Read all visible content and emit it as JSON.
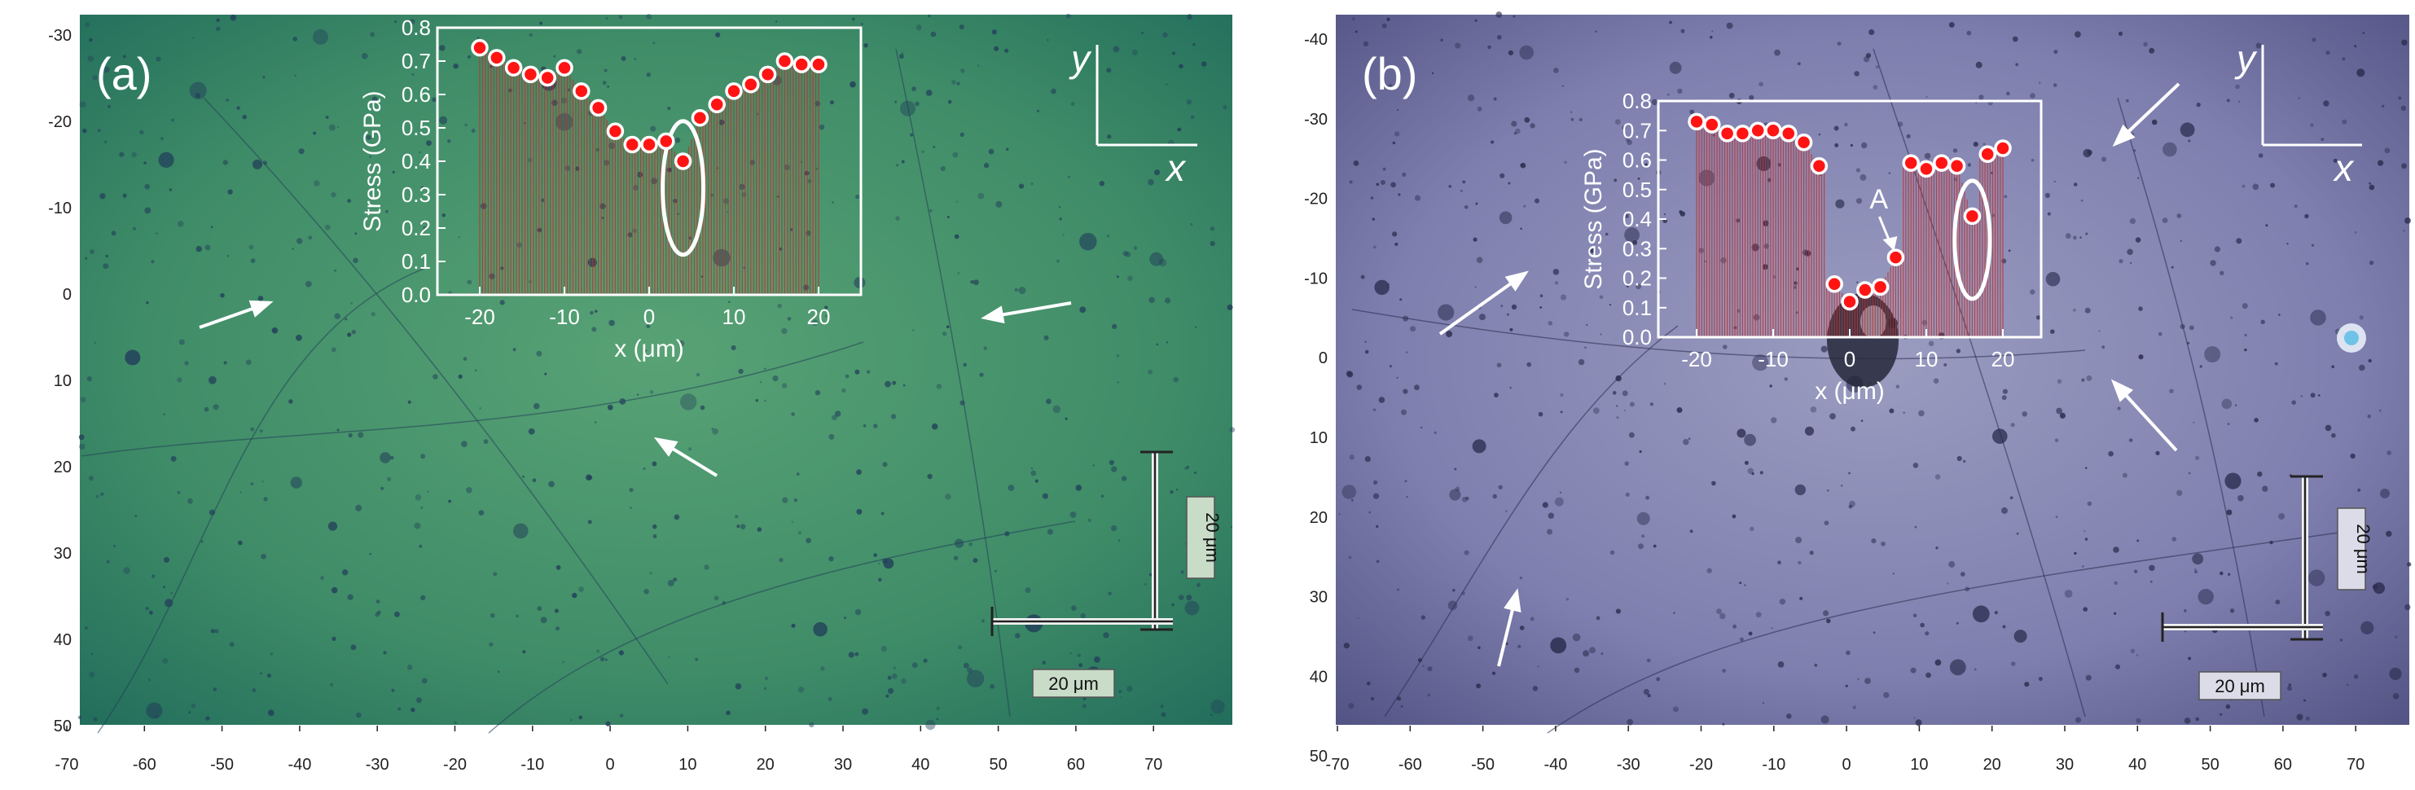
{
  "panels": [
    {
      "label": "(a)",
      "theme": {
        "bg_center": "#58a275",
        "bg_mid": "#3f8c68",
        "bg_edge": "#1f6a5a",
        "speck": "#22405a"
      },
      "x_axis_ticks": [
        "-70",
        "-60",
        "-50",
        "-40",
        "-30",
        "-20",
        "-10",
        "0",
        "10",
        "20",
        "30",
        "40",
        "50",
        "60",
        "70"
      ],
      "y_axis_ticks": [
        "-30",
        "-20",
        "-10",
        "0",
        "10",
        "20",
        "30",
        "40",
        "50"
      ],
      "axis_arrows": {
        "y": "y",
        "x": "x"
      },
      "scalebar_vertical": "20 μm",
      "scalebar_horizontal": "20 μm",
      "inset": {
        "chart_data": {
          "type": "scatter",
          "ylabel": "Stress (GPa)",
          "xlabel": "x (μm)",
          "x_ticks": [
            "-20",
            "-10",
            "0",
            "10",
            "20"
          ],
          "y_ticks": [
            "0.0",
            "0.1",
            "0.2",
            "0.3",
            "0.4",
            "0.5",
            "0.6",
            "0.7",
            "0.8"
          ],
          "xlim": [
            -25,
            25
          ],
          "ylim": [
            0,
            0.8
          ],
          "points": [
            {
              "x": -20,
              "y": 0.74
            },
            {
              "x": -18,
              "y": 0.71
            },
            {
              "x": -16,
              "y": 0.68
            },
            {
              "x": -14,
              "y": 0.66
            },
            {
              "x": -12,
              "y": 0.65
            },
            {
              "x": -10,
              "y": 0.68
            },
            {
              "x": -8,
              "y": 0.61
            },
            {
              "x": -6,
              "y": 0.56
            },
            {
              "x": -4,
              "y": 0.49
            },
            {
              "x": -2,
              "y": 0.45
            },
            {
              "x": 0,
              "y": 0.45
            },
            {
              "x": 2,
              "y": 0.46
            },
            {
              "x": 4,
              "y": 0.4
            },
            {
              "x": 6,
              "y": 0.53
            },
            {
              "x": 8,
              "y": 0.57
            },
            {
              "x": 10,
              "y": 0.61
            },
            {
              "x": 12,
              "y": 0.63
            },
            {
              "x": 14,
              "y": 0.66
            },
            {
              "x": 16,
              "y": 0.7
            },
            {
              "x": 18,
              "y": 0.69
            },
            {
              "x": 20,
              "y": 0.69
            }
          ],
          "ellipse": {
            "cx": 4,
            "cy": 0.32,
            "rx": 2.4,
            "ry": 0.2
          }
        }
      }
    },
    {
      "label": "(b)",
      "theme": {
        "bg_center": "#9a9cc0",
        "bg_mid": "#7e7fae",
        "bg_edge": "#4e4f80",
        "speck": "#2a2c4e"
      },
      "x_axis_ticks": [
        "-70",
        "-60",
        "-50",
        "-40",
        "-30",
        "-20",
        "-10",
        "0",
        "10",
        "20",
        "30",
        "40",
        "50",
        "60",
        "70"
      ],
      "y_axis_ticks": [
        "-40",
        "-30",
        "-20",
        "-10",
        "0",
        "10",
        "20",
        "30",
        "40",
        "50"
      ],
      "axis_arrows": {
        "y": "y",
        "x": "x"
      },
      "scalebar_vertical": "20 μm",
      "scalebar_horizontal": "20 μm",
      "inset": {
        "annotation": "A",
        "chart_data": {
          "type": "scatter",
          "ylabel": "Stress (GPa)",
          "xlabel": "x (μm)",
          "x_ticks": [
            "-20",
            "-10",
            "0",
            "10",
            "20"
          ],
          "y_ticks": [
            "0.0",
            "0.1",
            "0.2",
            "0.3",
            "0.4",
            "0.5",
            "0.6",
            "0.7",
            "0.8"
          ],
          "xlim": [
            -25,
            25
          ],
          "ylim": [
            0,
            0.8
          ],
          "points": [
            {
              "x": -20,
              "y": 0.73
            },
            {
              "x": -18,
              "y": 0.72
            },
            {
              "x": -16,
              "y": 0.69
            },
            {
              "x": -14,
              "y": 0.69
            },
            {
              "x": -12,
              "y": 0.7
            },
            {
              "x": -10,
              "y": 0.7
            },
            {
              "x": -8,
              "y": 0.69
            },
            {
              "x": -6,
              "y": 0.66
            },
            {
              "x": -4,
              "y": 0.58
            },
            {
              "x": -2,
              "y": 0.18
            },
            {
              "x": 0,
              "y": 0.12
            },
            {
              "x": 2,
              "y": 0.16
            },
            {
              "x": 4,
              "y": 0.17
            },
            {
              "x": 6,
              "y": 0.27
            },
            {
              "x": 8,
              "y": 0.59
            },
            {
              "x": 10,
              "y": 0.57
            },
            {
              "x": 12,
              "y": 0.59
            },
            {
              "x": 14,
              "y": 0.58
            },
            {
              "x": 16,
              "y": 0.41
            },
            {
              "x": 18,
              "y": 0.62
            },
            {
              "x": 20,
              "y": 0.64
            }
          ],
          "ellipse": {
            "cx": 16,
            "cy": 0.33,
            "rx": 2.3,
            "ry": 0.2
          }
        }
      }
    }
  ]
}
